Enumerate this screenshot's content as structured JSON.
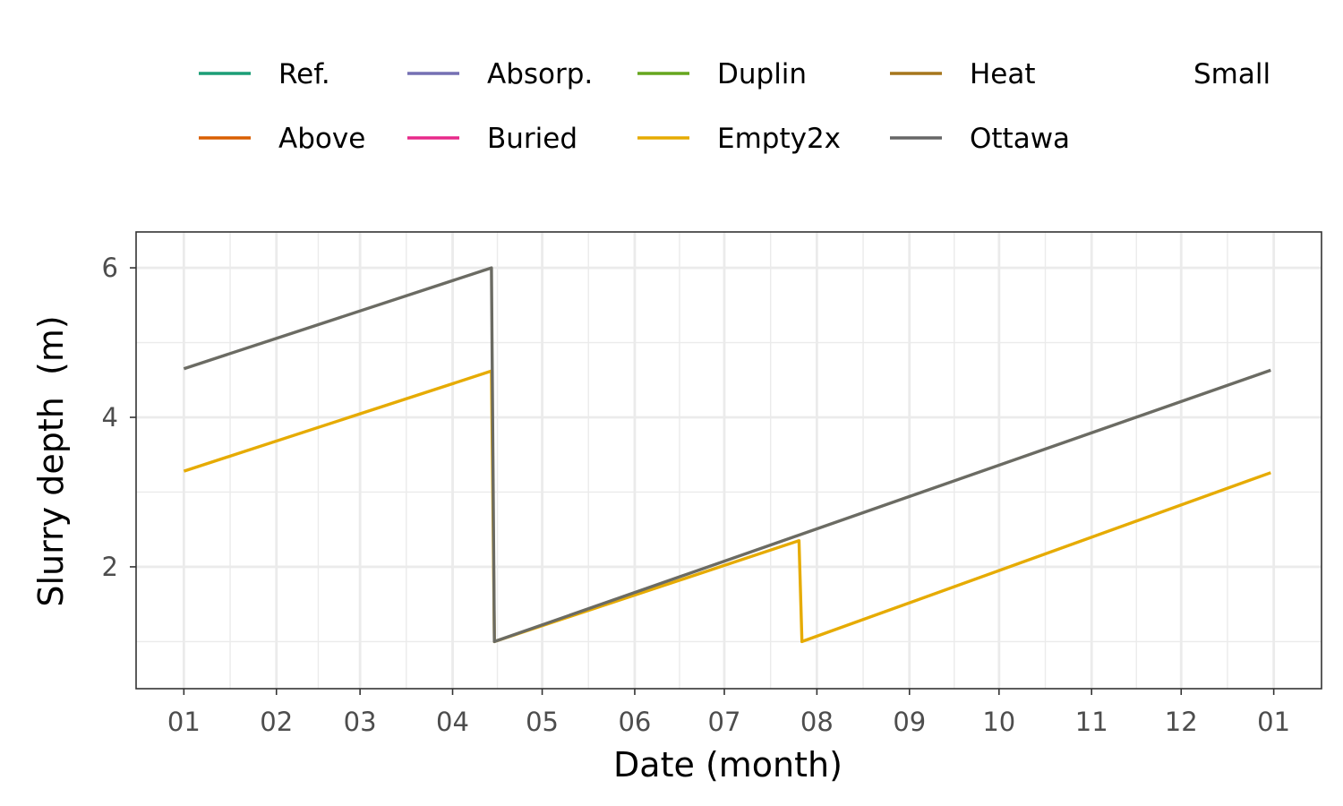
{
  "chart_data": {
    "type": "line",
    "xlabel": "Date (month)",
    "ylabel": "Slurry depth  (m)",
    "x_tick_labels": [
      "01",
      "02",
      "03",
      "04",
      "05",
      "06",
      "07",
      "08",
      "09",
      "10",
      "11",
      "12",
      "01"
    ],
    "x_ticks_doy": [
      1,
      32,
      60,
      91,
      121,
      152,
      182,
      213,
      244,
      274,
      305,
      335,
      366
    ],
    "xlim_doy": [
      -15,
      382
    ],
    "y_ticks": [
      2,
      4,
      6
    ],
    "y_tick_labels": [
      "2",
      "4",
      "6"
    ],
    "ylim": [
      0.37,
      6.48
    ],
    "grid": true,
    "legend_position": "top",
    "legend_title": "",
    "legend": [
      {
        "name": "Ref.",
        "color": "#1b9e77"
      },
      {
        "name": "Above",
        "color": "#d95f02"
      },
      {
        "name": "Absorp.",
        "color": "#7570b3"
      },
      {
        "name": "Buried",
        "color": "#e7298a"
      },
      {
        "name": "Duplin",
        "color": "#66a61e"
      },
      {
        "name": "Empty2x",
        "color": "#e6ab02"
      },
      {
        "name": "Heat",
        "color": "#a6761d"
      },
      {
        "name": "Ottawa",
        "color": "#666666"
      },
      {
        "name": "Small",
        "color": ""
      }
    ],
    "series": [
      {
        "name": "Empty2x",
        "color": "#e6ab02",
        "x_doy": [
          1,
          104,
          105,
          207,
          208,
          365
        ],
        "y": [
          3.28,
          4.62,
          1.0,
          2.35,
          1.0,
          3.26
        ]
      },
      {
        "name": "Ottawa",
        "color": "#6b6b63",
        "x_doy": [
          1,
          104,
          105,
          365
        ],
        "y": [
          4.65,
          6.0,
          1.0,
          4.63
        ]
      }
    ]
  }
}
